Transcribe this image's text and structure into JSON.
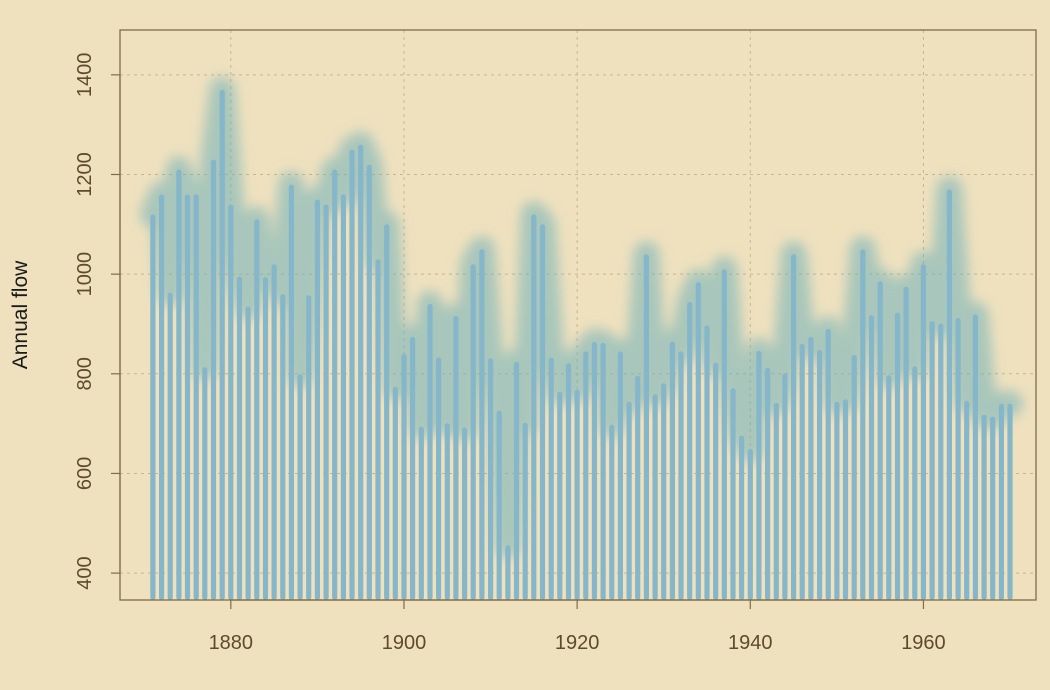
{
  "chart_data": {
    "type": "bar",
    "title": "",
    "xlabel": "",
    "ylabel": "Annual flow",
    "x": [
      1871,
      1872,
      1873,
      1874,
      1875,
      1876,
      1877,
      1878,
      1879,
      1880,
      1881,
      1882,
      1883,
      1884,
      1885,
      1886,
      1887,
      1888,
      1889,
      1890,
      1891,
      1892,
      1893,
      1894,
      1895,
      1896,
      1897,
      1898,
      1899,
      1900,
      1901,
      1902,
      1903,
      1904,
      1905,
      1906,
      1907,
      1908,
      1909,
      1910,
      1911,
      1912,
      1913,
      1914,
      1915,
      1916,
      1917,
      1918,
      1919,
      1920,
      1921,
      1922,
      1923,
      1924,
      1925,
      1926,
      1927,
      1928,
      1929,
      1930,
      1931,
      1932,
      1933,
      1934,
      1935,
      1936,
      1937,
      1938,
      1939,
      1940,
      1941,
      1942,
      1943,
      1944,
      1945,
      1946,
      1947,
      1948,
      1949,
      1950,
      1951,
      1952,
      1953,
      1954,
      1955,
      1956,
      1957,
      1958,
      1959,
      1960,
      1961,
      1962,
      1963,
      1964,
      1965,
      1966,
      1967,
      1968,
      1969,
      1970
    ],
    "values": [
      1120,
      1160,
      963,
      1210,
      1160,
      1160,
      813,
      1230,
      1370,
      1140,
      995,
      935,
      1110,
      994,
      1020,
      960,
      1180,
      799,
      958,
      1150,
      1140,
      1210,
      1160,
      1250,
      1260,
      1220,
      1030,
      1100,
      774,
      840,
      874,
      694,
      940,
      833,
      701,
      916,
      692,
      1020,
      1050,
      831,
      726,
      456,
      824,
      702,
      1120,
      1100,
      832,
      764,
      821,
      768,
      845,
      864,
      862,
      698,
      845,
      744,
      796,
      1040,
      759,
      781,
      865,
      845,
      944,
      984,
      897,
      822,
      1010,
      771,
      676,
      649,
      846,
      812,
      742,
      801,
      1040,
      860,
      874,
      848,
      890,
      744,
      749,
      838,
      1050,
      918,
      986,
      797,
      923,
      975,
      815,
      1020,
      906,
      901,
      1170,
      912,
      746,
      919,
      718,
      714,
      740,
      740
    ],
    "xlim": [
      1867.2,
      1973.0
    ],
    "ylim": [
      346,
      1490
    ],
    "x_ticks": [
      1880,
      1900,
      1920,
      1940,
      1960
    ],
    "y_ticks": [
      400,
      600,
      800,
      1000,
      1200,
      1400
    ],
    "grid": true,
    "colors": {
      "background": "#efe1be",
      "bar": "#86b6c9",
      "glow": "#6fb0b8",
      "axis": "#806c48",
      "grid": "#c9b48a",
      "tick_text": "#5e4a2c",
      "title_text": "#1a1a1a"
    }
  }
}
